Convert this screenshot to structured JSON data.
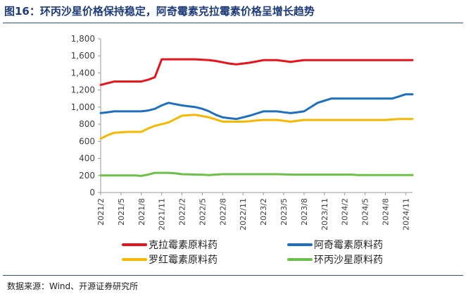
{
  "title": "图16：环丙沙星价格保持稳定，阿奇霉素克拉霉素价格呈增长趋势",
  "source": "数据来源：Wind、开源证券研究所",
  "chart_data": {
    "type": "line",
    "x_categories": [
      "2021/2",
      "2021/3",
      "2021/4",
      "2021/5",
      "2021/6",
      "2021/7",
      "2021/8",
      "2021/9",
      "2021/10",
      "2021/11",
      "2021/12",
      "2022/1",
      "2022/2",
      "2022/3",
      "2022/4",
      "2022/5",
      "2022/6",
      "2022/7",
      "2022/8",
      "2022/9",
      "2022/10",
      "2022/11",
      "2022/12",
      "2023/1",
      "2023/2",
      "2023/3",
      "2023/4",
      "2023/5",
      "2023/6",
      "2023/7",
      "2023/8",
      "2023/9",
      "2023/10",
      "2023/11",
      "2023/12",
      "2024/1",
      "2024/2",
      "2024/3",
      "2024/4",
      "2024/5",
      "2024/6",
      "2024/7",
      "2024/8",
      "2024/9",
      "2024/10",
      "2024/11",
      "2024/12"
    ],
    "x_tick_labels": [
      "2021/2",
      "2021/5",
      "2021/8",
      "2021/11",
      "2022/2",
      "2022/5",
      "2022/8",
      "2022/11",
      "2023/2",
      "2023/5",
      "2023/8",
      "2023/11",
      "2024/2",
      "2024/5",
      "2024/8",
      "2024/11"
    ],
    "ylim": [
      0,
      1800
    ],
    "y_ticks": [
      "0",
      "200",
      "400",
      "600",
      "800",
      "1,000",
      "1,200",
      "1,400",
      "1,600",
      "1,800"
    ],
    "grid": false,
    "legend_position": "bottom",
    "series": [
      {
        "name": "克拉霉素原料药",
        "color": "#e8141c",
        "values": [
          1260,
          1280,
          1300,
          1300,
          1300,
          1300,
          1300,
          1320,
          1350,
          1560,
          1560,
          1560,
          1560,
          1560,
          1560,
          1555,
          1550,
          1540,
          1525,
          1510,
          1500,
          1510,
          1520,
          1535,
          1550,
          1550,
          1550,
          1540,
          1530,
          1540,
          1550,
          1550,
          1550,
          1550,
          1550,
          1550,
          1550,
          1550,
          1550,
          1550,
          1550,
          1550,
          1550,
          1550,
          1550,
          1550,
          1550
        ]
      },
      {
        "name": "阿奇霉素原料药",
        "color": "#1f6fbf",
        "values": [
          930,
          940,
          950,
          950,
          950,
          950,
          950,
          960,
          980,
          1020,
          1050,
          1035,
          1020,
          1010,
          1000,
          980,
          950,
          910,
          880,
          870,
          860,
          880,
          900,
          925,
          950,
          950,
          950,
          940,
          930,
          940,
          950,
          1000,
          1050,
          1075,
          1100,
          1100,
          1100,
          1100,
          1100,
          1100,
          1100,
          1100,
          1100,
          1100,
          1125,
          1150,
          1150
        ]
      },
      {
        "name": "罗红霉素原料药",
        "color": "#f5b800",
        "values": [
          630,
          670,
          700,
          705,
          710,
          710,
          710,
          750,
          780,
          800,
          820,
          860,
          900,
          905,
          910,
          895,
          880,
          855,
          830,
          830,
          830,
          830,
          835,
          845,
          850,
          850,
          850,
          840,
          830,
          840,
          850,
          850,
          850,
          850,
          850,
          850,
          850,
          850,
          850,
          850,
          850,
          850,
          850,
          855,
          860,
          860,
          860
        ]
      },
      {
        "name": "环丙沙星原料药",
        "color": "#6cc04a",
        "values": [
          200,
          200,
          200,
          200,
          200,
          200,
          195,
          210,
          230,
          230,
          230,
          225,
          215,
          212,
          210,
          208,
          205,
          210,
          215,
          215,
          215,
          215,
          215,
          215,
          215,
          215,
          215,
          212,
          210,
          210,
          210,
          210,
          210,
          210,
          210,
          210,
          210,
          210,
          205,
          205,
          205,
          205,
          205,
          205,
          205,
          205,
          205
        ]
      }
    ]
  }
}
